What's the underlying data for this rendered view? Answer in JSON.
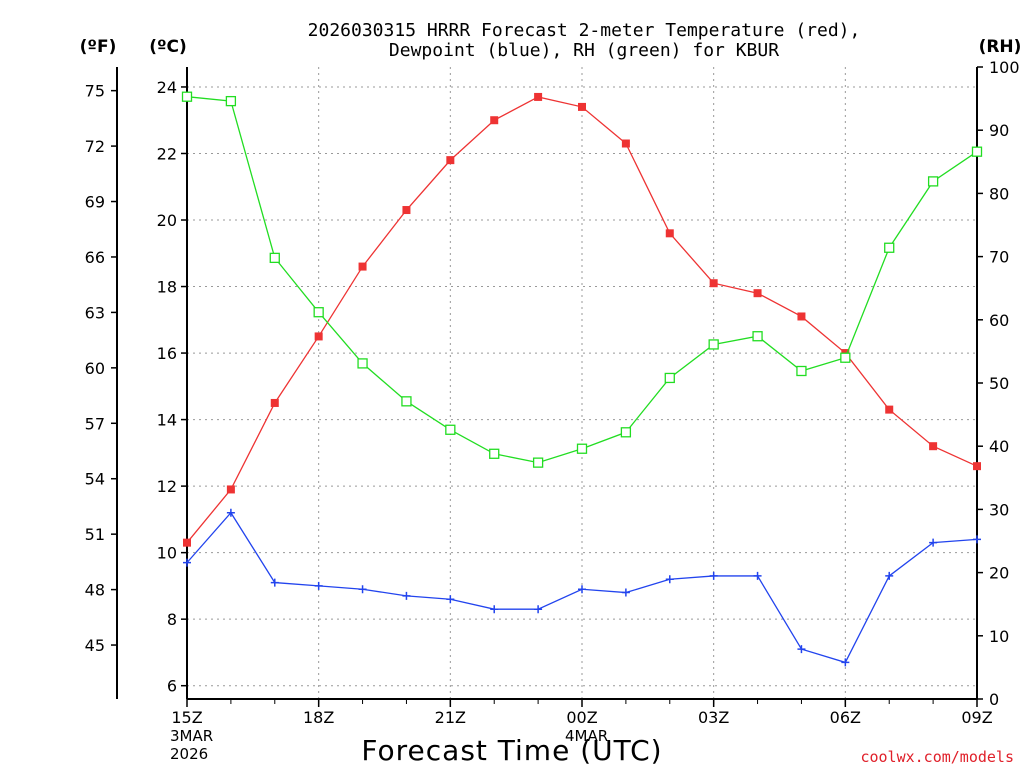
{
  "chart_data": {
    "type": "line",
    "title_line1": "2026030315 HRRR Forecast 2-meter Temperature (red),",
    "title_line2": "Dewpoint (blue), RH (green) for KBUR",
    "xlabel": "Forecast Time (UTC)",
    "credit": "coolwx.com/models",
    "axis_units": {
      "fahrenheit": "(ºF)",
      "celsius": "(ºC)",
      "rh": "(RH)"
    },
    "x_hours": [
      0,
      1,
      2,
      3,
      4,
      5,
      6,
      7,
      8,
      9,
      10,
      11,
      12,
      13,
      14,
      15,
      16,
      17,
      18
    ],
    "xlim": [
      0,
      18
    ],
    "x_ticks": [
      {
        "hour": 0,
        "label": "15Z",
        "sub1": "3MAR",
        "sub2": "2026"
      },
      {
        "hour": 3,
        "label": "18Z",
        "sub1": "",
        "sub2": ""
      },
      {
        "hour": 6,
        "label": "21Z",
        "sub1": "",
        "sub2": ""
      },
      {
        "hour": 9,
        "label": "00Z",
        "sub1": "4MAR",
        "sub2": ""
      },
      {
        "hour": 12,
        "label": "03Z",
        "sub1": "",
        "sub2": ""
      },
      {
        "hour": 15,
        "label": "06Z",
        "sub1": "",
        "sub2": ""
      },
      {
        "hour": 18,
        "label": "09Z",
        "sub1": "",
        "sub2": ""
      }
    ],
    "celsius_axis": {
      "range": [
        5.6,
        24.6
      ],
      "ticks": [
        6,
        8,
        10,
        12,
        14,
        16,
        18,
        20,
        22,
        24
      ]
    },
    "fahrenheit_axis": {
      "ticks": [
        45,
        48,
        51,
        54,
        57,
        60,
        63,
        66,
        69,
        72,
        75
      ]
    },
    "rh_axis": {
      "range": [
        0,
        100
      ],
      "ticks": [
        0,
        10,
        20,
        30,
        40,
        50,
        60,
        70,
        80,
        90,
        100
      ]
    },
    "series": [
      {
        "name": "2-meter Temperature",
        "color": "#ee3333",
        "marker": "filled-square",
        "axis": "celsius",
        "values": [
          10.3,
          11.9,
          14.5,
          16.5,
          18.6,
          20.3,
          21.8,
          23.0,
          23.7,
          23.4,
          22.3,
          19.6,
          18.1,
          17.8,
          17.1,
          16.0,
          14.3,
          13.2,
          12.6
        ]
      },
      {
        "name": "Dewpoint",
        "color": "#2244ee",
        "marker": "plus",
        "axis": "celsius",
        "values": [
          9.7,
          11.2,
          9.1,
          9.0,
          8.9,
          8.7,
          8.6,
          8.3,
          8.3,
          8.9,
          8.8,
          9.2,
          9.3,
          9.3,
          7.1,
          6.7,
          9.3,
          10.3,
          10.4
        ]
      },
      {
        "name": "RH",
        "color": "#22dd22",
        "marker": "open-square",
        "axis": "rh",
        "values": [
          95.3,
          94.6,
          69.8,
          61.2,
          53.1,
          47.1,
          42.6,
          38.8,
          37.4,
          39.6,
          42.2,
          50.8,
          56.1,
          57.4,
          51.9,
          54.0,
          71.4,
          81.9,
          86.6
        ]
      }
    ]
  }
}
